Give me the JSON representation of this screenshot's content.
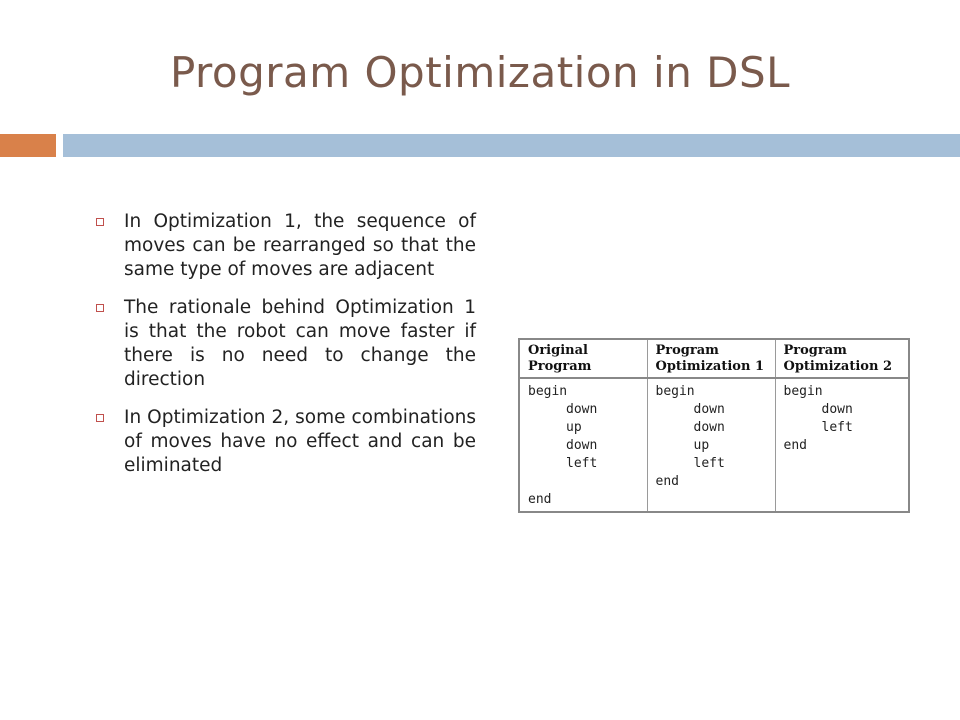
{
  "slide": {
    "title": "Program Optimization in DSL",
    "bullets": [
      "In Optimization 1, the sequence of moves can be rearranged so that the same type of moves are adjacent",
      "The rationale behind Optimization 1 is that the robot can move faster if there is no need to change the direction",
      "In Optimization 2, some combinations of moves have no effect and can be eliminated"
    ]
  },
  "table": {
    "headers": [
      [
        "Original",
        "Program"
      ],
      [
        "Program",
        "Optimization 1"
      ],
      [
        "Program",
        "Optimization 2"
      ]
    ],
    "columns": [
      {
        "begin": "begin",
        "moves": [
          "down",
          "up",
          "down",
          "left"
        ],
        "end": "end"
      },
      {
        "begin": "begin",
        "moves": [
          "down",
          "down",
          "up",
          "left"
        ],
        "end": "end"
      },
      {
        "begin": "begin",
        "moves": [
          "down",
          "left"
        ],
        "end": "end"
      }
    ]
  },
  "colors": {
    "title": "#7a5a4c",
    "accent_orange": "#d9814a",
    "accent_blue": "#a5bfd8",
    "bullet_marker": "#c0504d"
  }
}
